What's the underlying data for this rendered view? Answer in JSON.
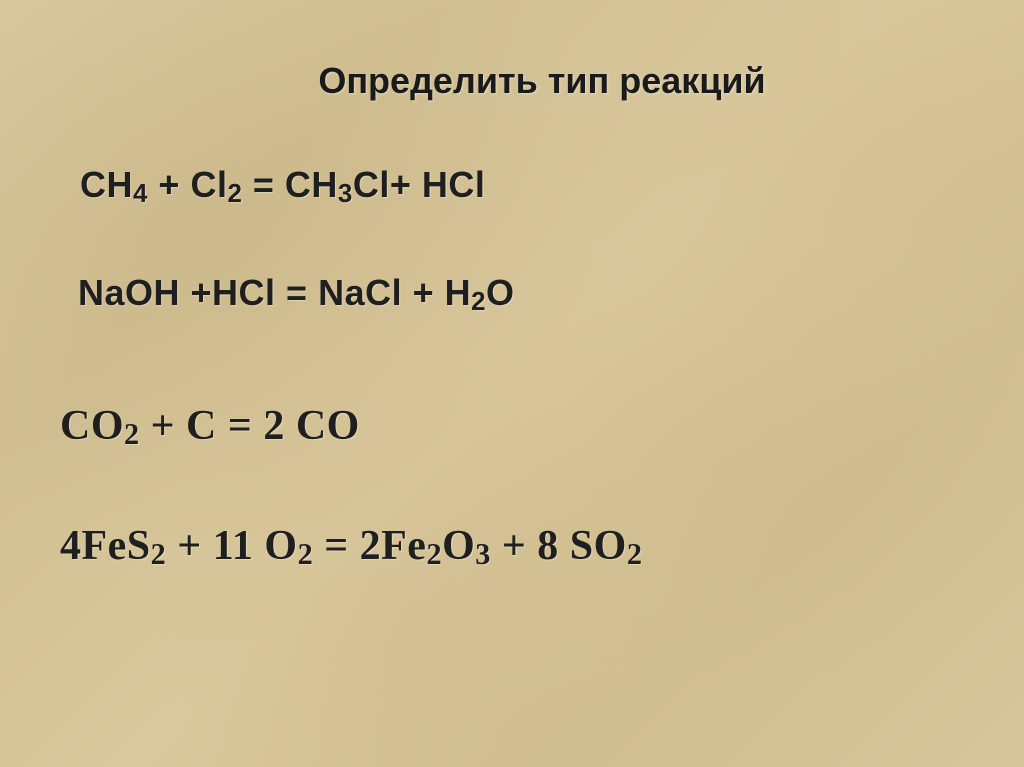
{
  "slide": {
    "title": "Определить тип реакций",
    "title_fontsize": 36,
    "title_color": "#1a1a1a",
    "background_base": "#d4c49a",
    "equations": [
      {
        "left_parts": [
          {
            "t": "CH",
            "sub": "4"
          },
          {
            "t": " + Cl",
            "sub": "2"
          },
          {
            "t": " = CH",
            "sub": "3"
          },
          {
            "t": "Cl+ HCl"
          }
        ],
        "font_family": "Arial",
        "fontsize": 36,
        "color": "#1f1f1f"
      },
      {
        "left_parts": [
          {
            "t": "NaOH +HCl = NaCl + H",
            "sub": "2"
          },
          {
            "t": "O"
          }
        ],
        "font_family": "Arial",
        "fontsize": 36,
        "color": "#1f1f1f"
      },
      {
        "left_parts": [
          {
            "t": "CO",
            "sub": "2"
          },
          {
            "t": " + C = 2 CO"
          }
        ],
        "font_family": "Times New Roman",
        "fontsize": 42,
        "color": "#1f1f1f"
      },
      {
        "left_parts": [
          {
            "t": "4FeS",
            "sub": "2"
          },
          {
            "t": " + 11 O",
            "sub": "2"
          },
          {
            "t": " = 2Fe",
            "sub": "2"
          },
          {
            "t": "O",
            "sub": "3"
          },
          {
            "t": " + 8 SO",
            "sub": "2"
          }
        ],
        "font_family": "Times New Roman",
        "fontsize": 42,
        "color": "#1f1f1f"
      }
    ]
  }
}
